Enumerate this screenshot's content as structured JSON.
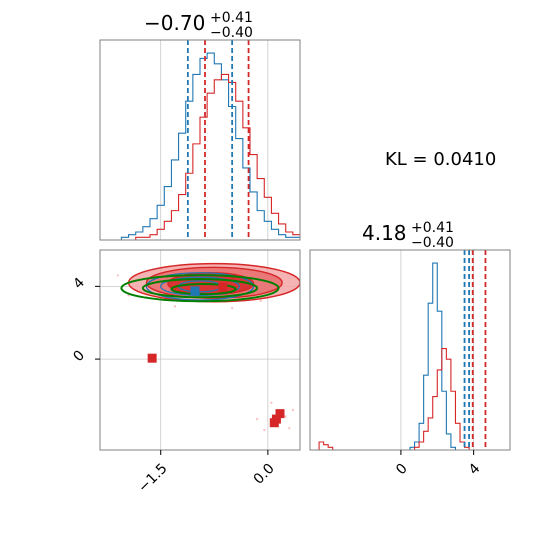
{
  "chart_data": {
    "type": "corner",
    "annotation": {
      "label": "KL = 0.0410"
    },
    "params": [
      {
        "title_main": "−0.70",
        "title_plus": "+0.41",
        "title_minus": "−0.40"
      },
      {
        "title_main": "4.18",
        "title_plus": "+0.41",
        "title_minus": "−0.40"
      }
    ],
    "colors": {
      "blue": "#1f77b4",
      "red": "#d62728",
      "green": "#008000",
      "grid": "#c8c8c8",
      "frame": "#808080"
    },
    "x_axis_param0": {
      "range": [
        -2.35,
        0.45
      ],
      "ticks": [
        {
          "value": -1.5,
          "label": "−1.5"
        },
        {
          "value": 0.0,
          "label": "0.0"
        }
      ]
    },
    "y_axis_param1": {
      "range": [
        -5.0,
        6.0
      ],
      "ticks": [
        {
          "value": 0,
          "label": "0"
        },
        {
          "value": 4,
          "label": "4"
        }
      ]
    },
    "x_axis_param1": {
      "range": [
        -5.0,
        6.0
      ],
      "ticks": [
        {
          "value": 0,
          "label": "0"
        },
        {
          "value": 4,
          "label": "4"
        }
      ]
    },
    "hist1d_param0": {
      "x_start": -2.35,
      "bin_width": 0.1,
      "blue": [
        0,
        0,
        0,
        1,
        2,
        3,
        5,
        8,
        13,
        20,
        30,
        40,
        52,
        62,
        68,
        70,
        66,
        60,
        50,
        38,
        27,
        18,
        11,
        7,
        4,
        2,
        1,
        1
      ],
      "red": [
        0,
        0,
        0,
        0,
        0,
        1,
        1,
        2,
        4,
        7,
        11,
        17,
        25,
        36,
        46,
        55,
        60,
        62,
        59,
        52,
        42,
        32,
        23,
        16,
        10,
        6,
        3,
        2
      ],
      "quantiles_blue": [
        -1.12,
        -0.5
      ],
      "quantiles_red": [
        -0.88,
        -0.27
      ]
    },
    "hist1d_param1": {
      "x_start": -5.0,
      "bin_width": 0.25,
      "blue": [
        0,
        0,
        0,
        0,
        0,
        0,
        0,
        0,
        0,
        0,
        0,
        0,
        0,
        0,
        0,
        0,
        0,
        0,
        0,
        0,
        0,
        0,
        1,
        3,
        10,
        28,
        55,
        70,
        52,
        22,
        6,
        1,
        0,
        0,
        0,
        0,
        0,
        0,
        0,
        0,
        0,
        0,
        0,
        0
      ],
      "red": [
        0,
        0,
        3,
        2,
        1,
        0,
        0,
        0,
        0,
        0,
        0,
        0,
        0,
        0,
        0,
        0,
        0,
        0,
        0,
        0,
        0,
        0,
        0,
        1,
        3,
        7,
        12,
        20,
        30,
        38,
        34,
        22,
        10,
        3,
        1,
        0,
        0,
        0,
        0,
        0,
        0,
        0,
        0,
        0
      ],
      "quantiles_blue": [
        3.5,
        3.75
      ],
      "quantiles_red": [
        3.95,
        4.65
      ]
    },
    "scatter_param0_vs_param1": {
      "blue_contours": [
        {
          "cx": -0.95,
          "cy": 4.0,
          "rx": 0.75,
          "ry": 0.75
        },
        {
          "cx": -0.95,
          "cy": 4.0,
          "rx": 0.55,
          "ry": 0.5
        },
        {
          "cx": -0.95,
          "cy": 4.0,
          "rx": 0.3,
          "ry": 0.3
        }
      ],
      "red_contours": [
        {
          "cx": -0.75,
          "cy": 4.2,
          "rx": 1.2,
          "ry": 1.05
        },
        {
          "cx": -0.75,
          "cy": 4.2,
          "rx": 0.95,
          "ry": 0.85
        },
        {
          "cx": -0.8,
          "cy": 4.15,
          "rx": 0.6,
          "ry": 0.6
        }
      ],
      "green_contours": [
        {
          "cx": -0.95,
          "cy": 3.9,
          "rx": 1.1,
          "ry": 0.72
        },
        {
          "cx": -0.95,
          "cy": 3.9,
          "rx": 0.8,
          "ry": 0.5
        },
        {
          "cx": -0.9,
          "cy": 3.85,
          "rx": 0.45,
          "ry": 0.28
        }
      ],
      "markers": [
        {
          "x": -1.02,
          "y": 3.75,
          "color": "blue"
        },
        {
          "x": -1.62,
          "y": 0.05,
          "color": "red"
        },
        {
          "x": -0.63,
          "y": 3.95,
          "color": "red"
        },
        {
          "x": 0.17,
          "y": -3.0,
          "color": "red"
        },
        {
          "x": 0.12,
          "y": -3.3,
          "color": "red"
        },
        {
          "x": 0.09,
          "y": -3.5,
          "color": "red"
        }
      ],
      "faint_points": [
        {
          "x": -1.9,
          "y": 4.3
        },
        {
          "x": -2.05,
          "y": 3.9
        },
        {
          "x": -1.7,
          "y": 3.4
        },
        {
          "x": -0.2,
          "y": 4.6
        },
        {
          "x": 0.1,
          "y": 3.8
        },
        {
          "x": -0.5,
          "y": 2.8
        },
        {
          "x": -1.3,
          "y": 2.9
        },
        {
          "x": -2.1,
          "y": 4.6
        },
        {
          "x": 0.05,
          "y": -2.4
        },
        {
          "x": 0.3,
          "y": -3.8
        },
        {
          "x": -0.15,
          "y": -3.3
        },
        {
          "x": 0.35,
          "y": -2.8
        },
        {
          "x": -0.05,
          "y": -3.9
        },
        {
          "x": 0.25,
          "y": -3.15
        },
        {
          "x": -1.1,
          "y": 5.0
        },
        {
          "x": -0.4,
          "y": 5.2
        },
        {
          "x": -1.6,
          "y": 4.9
        },
        {
          "x": -0.1,
          "y": 3.2
        },
        {
          "x": -1.95,
          "y": 3.5
        },
        {
          "x": 0.2,
          "y": 4.3
        }
      ]
    }
  }
}
